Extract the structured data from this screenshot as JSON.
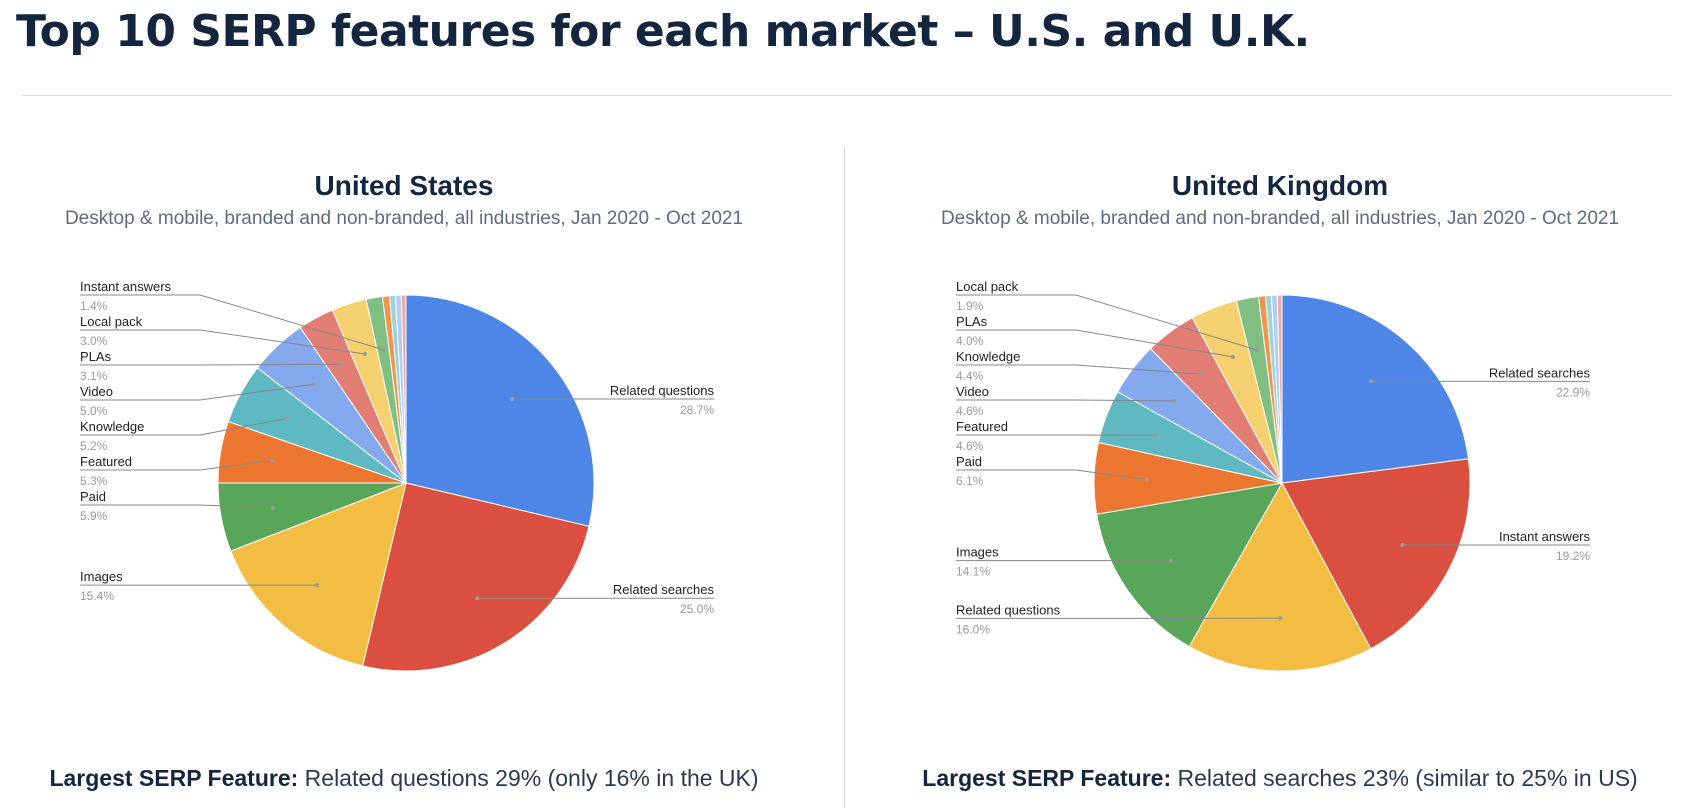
{
  "page": {
    "title": "Top 10 SERP features for each market – U.S. and U.K."
  },
  "chart_data": [
    {
      "type": "pie",
      "title": "United States",
      "subtitle": "Desktop & mobile, branded and non-branded, all industries, Jan 2020 - Oct 2021",
      "slices": [
        {
          "label": "Related questions",
          "value": 28.7,
          "value_label": "28.7%",
          "color": "#4e86e8",
          "side": "right"
        },
        {
          "label": "Related searches",
          "value": 25.0,
          "value_label": "25.0%",
          "color": "#da4f40",
          "side": "right"
        },
        {
          "label": "Images",
          "value": 15.4,
          "value_label": "15.4%",
          "color": "#f3bc42",
          "side": "left"
        },
        {
          "label": "Paid",
          "value": 5.9,
          "value_label": "5.9%",
          "color": "#57a65a",
          "side": "left"
        },
        {
          "label": "Featured",
          "value": 5.3,
          "value_label": "5.3%",
          "color": "#ec7630",
          "side": "left"
        },
        {
          "label": "Knowledge",
          "value": 5.2,
          "value_label": "5.2%",
          "color": "#5fb9c2",
          "side": "left"
        },
        {
          "label": "Video",
          "value": 5.0,
          "value_label": "5.0%",
          "color": "#84a9ef",
          "side": "left"
        },
        {
          "label": "PLAs",
          "value": 3.1,
          "value_label": "3.1%",
          "color": "#e27d73",
          "side": "left"
        },
        {
          "label": "Local pack",
          "value": 3.0,
          "value_label": "3.0%",
          "color": "#f5d06e",
          "side": "left"
        },
        {
          "label": "Instant answers",
          "value": 1.4,
          "value_label": "1.4%",
          "color": "#7fbf82",
          "side": "left"
        },
        {
          "label": "",
          "value": 0.6,
          "value_label": "",
          "color": "#f0954e",
          "side": "none"
        },
        {
          "label": "",
          "value": 0.5,
          "value_label": "",
          "color": "#9bd3d9",
          "side": "none"
        },
        {
          "label": "",
          "value": 0.5,
          "value_label": "",
          "color": "#b4cbf5",
          "side": "none"
        },
        {
          "label": "",
          "value": 0.4,
          "value_label": "",
          "color": "#efaaa3",
          "side": "none"
        }
      ]
    },
    {
      "type": "pie",
      "title": "United Kingdom",
      "subtitle": "Desktop & mobile, branded and non-branded, all industries, Jan 2020 - Oct 2021",
      "slices": [
        {
          "label": "Related searches",
          "value": 22.9,
          "value_label": "22.9%",
          "color": "#4e86e8",
          "side": "right"
        },
        {
          "label": "Instant answers",
          "value": 19.2,
          "value_label": "19.2%",
          "color": "#da4f40",
          "side": "right"
        },
        {
          "label": "Related questions",
          "value": 16.0,
          "value_label": "16.0%",
          "color": "#f3bc42",
          "side": "left"
        },
        {
          "label": "Images",
          "value": 14.1,
          "value_label": "14.1%",
          "color": "#57a65a",
          "side": "left"
        },
        {
          "label": "Paid",
          "value": 6.1,
          "value_label": "6.1%",
          "color": "#ec7630",
          "side": "left"
        },
        {
          "label": "Featured",
          "value": 4.6,
          "value_label": "4.6%",
          "color": "#5fb9c2",
          "side": "left"
        },
        {
          "label": "Video",
          "value": 4.6,
          "value_label": "4.6%",
          "color": "#84a9ef",
          "side": "left"
        },
        {
          "label": "Knowledge",
          "value": 4.4,
          "value_label": "4.4%",
          "color": "#e27d73",
          "side": "left"
        },
        {
          "label": "PLAs",
          "value": 4.0,
          "value_label": "4.0%",
          "color": "#f5d06e",
          "side": "left"
        },
        {
          "label": "Local pack",
          "value": 1.9,
          "value_label": "1.9%",
          "color": "#7fbf82",
          "side": "left"
        },
        {
          "label": "",
          "value": 0.6,
          "value_label": "",
          "color": "#f0954e",
          "side": "none"
        },
        {
          "label": "",
          "value": 0.5,
          "value_label": "",
          "color": "#9bd3d9",
          "side": "none"
        },
        {
          "label": "",
          "value": 0.5,
          "value_label": "",
          "color": "#b4cbf5",
          "side": "none"
        },
        {
          "label": "",
          "value": 0.4,
          "value_label": "",
          "color": "#efaaa3",
          "side": "none"
        }
      ]
    }
  ],
  "takeaways": [
    {
      "label": "Largest SERP Feature:",
      "text": "Related questions 29% (only 16% in the UK)"
    },
    {
      "label": "Largest SERP Feature:",
      "text": "Related searches 23% (similar to 25% in US)"
    }
  ]
}
